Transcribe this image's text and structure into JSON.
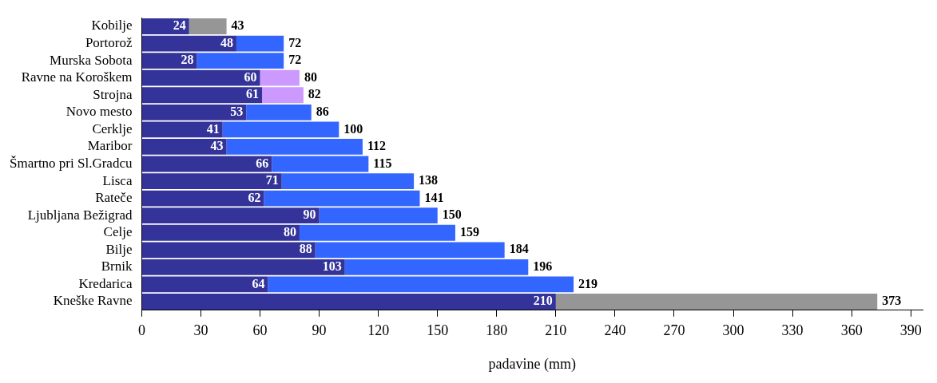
{
  "chart_data": {
    "type": "bar",
    "orientation": "horizontal",
    "stacked": true,
    "xlabel": "padavine (mm)",
    "categories": [
      "Kobilje",
      "Portorož",
      "Murska Sobota",
      "Ravne na Koroškem",
      "Strojna",
      "Novo mesto",
      "Cerklje",
      "Maribor",
      "Šmartno pri Sl.Gradcu",
      "Lisca",
      "Rateče",
      "Ljubljana Bežigrad",
      "Celje",
      "Bilje",
      "Brnik",
      "Kredarica",
      "Kneške Ravne"
    ],
    "series": [
      {
        "color": "#333399",
        "values": [
          24,
          48,
          28,
          60,
          61,
          53,
          41,
          43,
          66,
          71,
          62,
          90,
          80,
          88,
          103,
          64,
          210
        ],
        "value_labels": [
          "24",
          "48",
          "28",
          "60",
          "61",
          "53",
          "41",
          "43",
          "66",
          "71",
          "62",
          "90",
          "80",
          "88",
          "103",
          "64",
          "210"
        ]
      },
      {
        "colors": [
          "#969696",
          "#3366ff",
          "#3366ff",
          "#cc99ff",
          "#cc99ff",
          "#3366ff",
          "#3366ff",
          "#3366ff",
          "#3366ff",
          "#3366ff",
          "#3366ff",
          "#3366ff",
          "#3366ff",
          "#3366ff",
          "#3366ff",
          "#3366ff",
          "#969696"
        ],
        "values": [
          19,
          24,
          44,
          20,
          21,
          33,
          59,
          69,
          49,
          67,
          79,
          60,
          79,
          96,
          93,
          155,
          163
        ]
      }
    ],
    "totals": [
      "43",
      "72",
      "72",
      "80",
      "82",
      "86",
      "100",
      "112",
      "115",
      "138",
      "141",
      "150",
      "159",
      "184",
      "196",
      "219",
      "373"
    ],
    "xlim": [
      0,
      396
    ],
    "xticks": [
      0,
      30,
      60,
      90,
      120,
      150,
      180,
      210,
      240,
      270,
      300,
      330,
      360,
      390
    ],
    "grid": false,
    "legend": false
  }
}
